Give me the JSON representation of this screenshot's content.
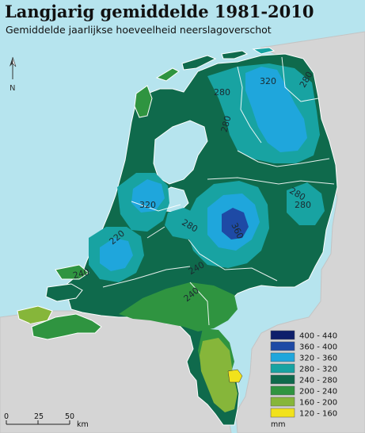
{
  "title": "Langjarig gemiddelde 1981-2010",
  "subtitle": "Gemiddelde jaarlijkse hoeveelheid neerslagoverschot",
  "north_label": "N",
  "scale_bar": {
    "ticks": [
      "0",
      "25",
      "50"
    ],
    "unit": "km"
  },
  "legend": {
    "unit": "mm",
    "classes": [
      {
        "label": "400 - 440",
        "color": "#0e1f6b"
      },
      {
        "label": "360 - 400",
        "color": "#1e4aa5"
      },
      {
        "label": "320 - 360",
        "color": "#1fa6dc"
      },
      {
        "label": "280 - 320",
        "color": "#18a3a2"
      },
      {
        "label": "240 - 280",
        "color": "#0f6a4c"
      },
      {
        "label": "200 - 240",
        "color": "#2f9440"
      },
      {
        "label": "160 - 200",
        "color": "#86b63a"
      },
      {
        "label": "120 - 160",
        "color": "#f1e21c"
      }
    ]
  },
  "isolines": [
    "320",
    "280",
    "280",
    "280",
    "280",
    "320",
    "280",
    "360",
    "280",
    "220",
    "240",
    "240",
    "240"
  ]
}
